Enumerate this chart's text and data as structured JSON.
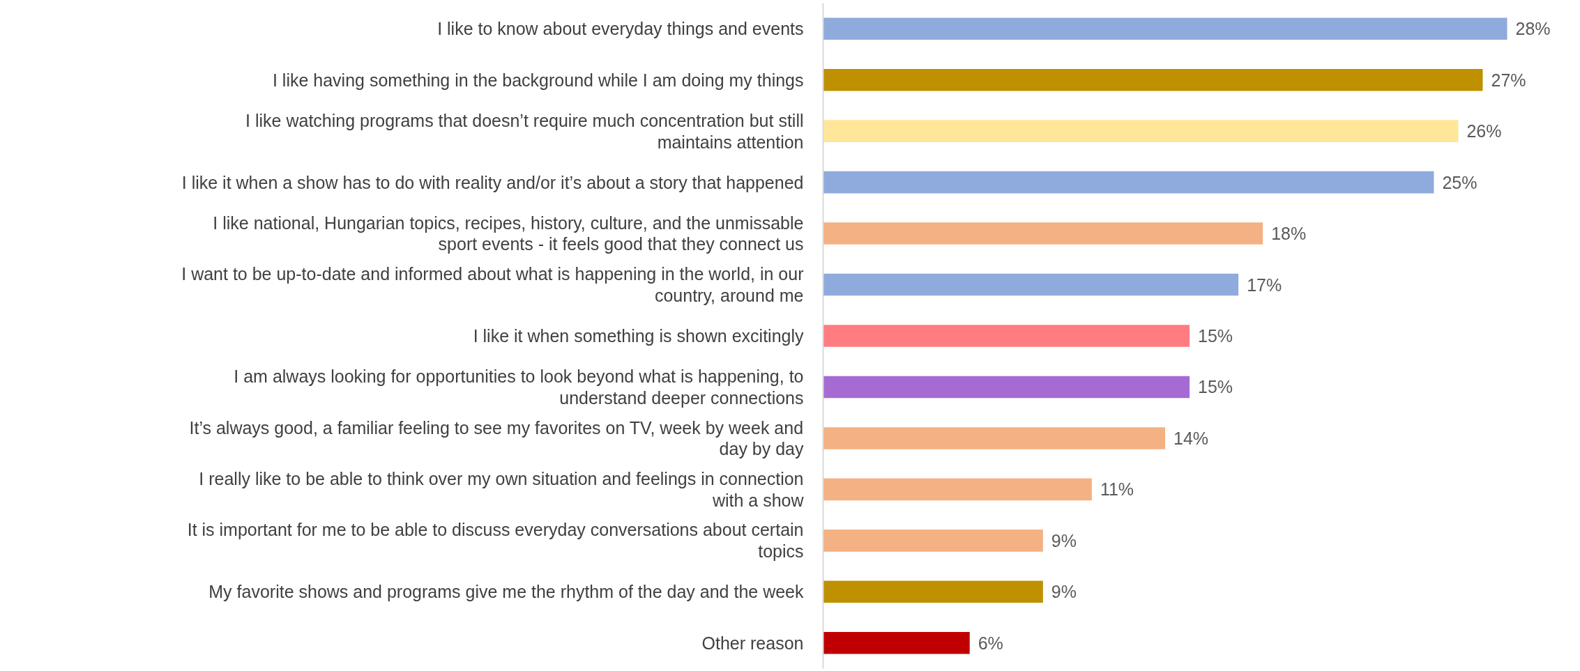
{
  "chart_data": {
    "type": "bar",
    "orientation": "horizontal",
    "categories": [
      "I like to know about everyday things and events",
      "I like having something in the background while I am doing my things",
      "I like watching programs that doesn’t require much concentration but still\nmaintains attention",
      "I like it when a show has to do with reality and/or it’s about a story that happened",
      "I like national, Hungarian topics, recipes, history, culture, and the unmissable\nsport events - it feels good that they connect us",
      "I want to be up-to-date and informed about what is happening in the world, in our\ncountry, around me",
      "I like it when something is shown excitingly",
      "I am always looking for opportunities to look beyond what is happening, to\nunderstand deeper connections",
      "It’s always good, a familiar feeling to see my favorites on TV, week by week and\nday by day",
      "I really like to be able to think over my own situation and feelings in connection\nwith a show",
      "It is important for me to be able to discuss everyday conversations about certain\ntopics",
      "My favorite shows and programs give me the rhythm of the day and the week",
      "Other reason"
    ],
    "values": [
      28,
      27,
      26,
      25,
      18,
      17,
      15,
      15,
      14,
      11,
      9,
      9,
      6
    ],
    "value_labels": [
      "28%",
      "27%",
      "26%",
      "25%",
      "18%",
      "17%",
      "15%",
      "15%",
      "14%",
      "11%",
      "9%",
      "9%",
      "6%"
    ],
    "colors": [
      "#8faadc",
      "#bf9000",
      "#ffe699",
      "#8faadc",
      "#f4b183",
      "#8faadc",
      "#ff7c80",
      "#a66bd3",
      "#f4b183",
      "#f4b183",
      "#f4b183",
      "#bf9000",
      "#c00000"
    ],
    "tick_labels": "y",
    "grid": false
  }
}
